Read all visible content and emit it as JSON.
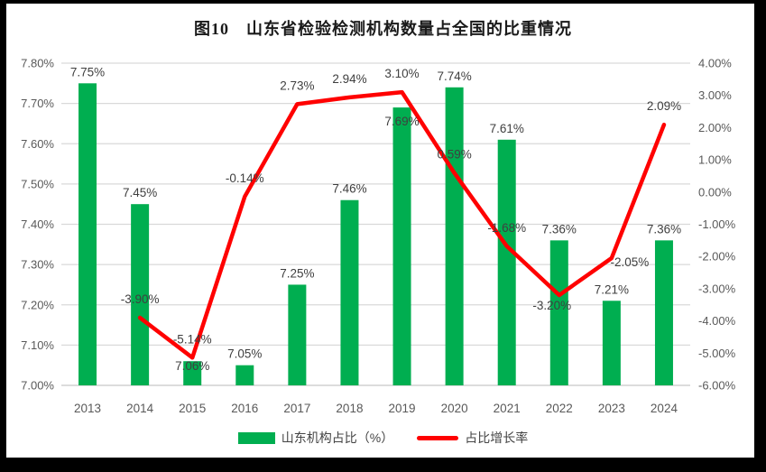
{
  "title": "图10　山东省检验检测机构数量占全国的比重情况",
  "legend": {
    "bar_label": "山东机构占比（%）",
    "line_label": "占比增长率"
  },
  "colors": {
    "bar": "#00AE50",
    "line": "#FF0000",
    "gridline": "#D9D9D9",
    "baseline": "#C8C6C6",
    "tick_text": "#595959",
    "datalabel_text": "#3F3F3F"
  },
  "chart_data": {
    "type": "bar+line",
    "title": "图10　山东省检验检测机构数量占全国的比重情况",
    "categories": [
      "2013",
      "2014",
      "2015",
      "2016",
      "2017",
      "2018",
      "2019",
      "2020",
      "2021",
      "2022",
      "2023",
      "2024"
    ],
    "series": [
      {
        "name": "山东机构占比（%）",
        "type": "bar",
        "axis": "left",
        "color": "#00AE50",
        "values": [
          7.75,
          7.45,
          7.06,
          7.05,
          7.25,
          7.46,
          7.69,
          7.74,
          7.61,
          7.36,
          7.21,
          7.36
        ],
        "label_dy": [
          0,
          0,
          18,
          0,
          0,
          0,
          28,
          0,
          0,
          0,
          0,
          0
        ],
        "label_dx": [
          0,
          0,
          0,
          0,
          0,
          0,
          0,
          0,
          0,
          0,
          0,
          0
        ]
      },
      {
        "name": "占比增长率",
        "type": "line",
        "axis": "right",
        "color": "#FF0000",
        "values": [
          null,
          -3.9,
          -5.14,
          -0.14,
          2.73,
          2.94,
          3.1,
          0.59,
          -1.68,
          -3.2,
          -2.05,
          2.09
        ],
        "label_dy": [
          0,
          0,
          0,
          0,
          0,
          0,
          0,
          0,
          0,
          32,
          25,
          0
        ],
        "label_dx": [
          0,
          0,
          0,
          0,
          0,
          0,
          0,
          0,
          0,
          -8,
          20,
          0
        ]
      }
    ],
    "axes": {
      "left": {
        "min": 7.0,
        "max": 7.8,
        "step": 0.1,
        "ticks": [
          "7.80%",
          "7.70%",
          "7.60%",
          "7.50%",
          "7.40%",
          "7.30%",
          "7.20%",
          "7.10%",
          "7.00%"
        ]
      },
      "right": {
        "min": -6.0,
        "max": 4.0,
        "step": 1.0,
        "ticks": [
          "4.00%",
          "3.00%",
          "2.00%",
          "1.00%",
          "0.00%",
          "-1.00%",
          "-2.00%",
          "-3.00%",
          "-4.00%",
          "-5.00%",
          "-6.00%"
        ]
      }
    },
    "grid": true,
    "legend_position": "bottom",
    "value_format": "0.00%"
  }
}
